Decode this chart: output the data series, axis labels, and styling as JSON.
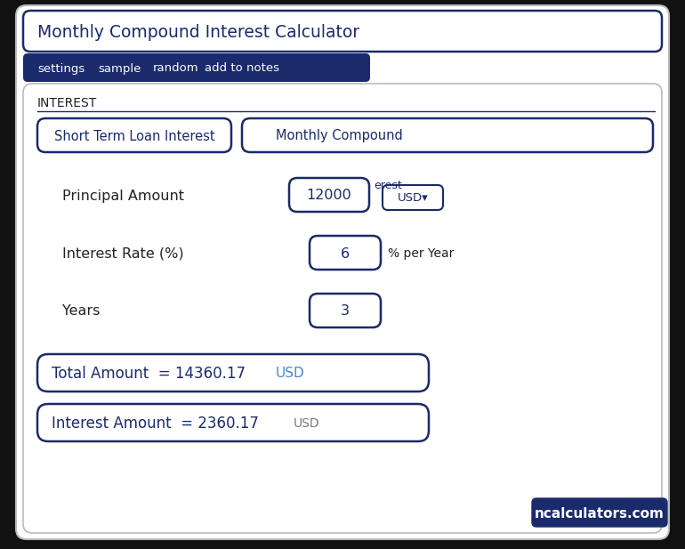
{
  "title": "Monthly Compound Interest Calculator",
  "tab_items": [
    "settings",
    "sample",
    "random",
    "add to notes"
  ],
  "tab_bg": "#1b2a6b",
  "tab_text_color": "#ffffff",
  "section_label": "INTEREST",
  "btn1_text": "Short Term Loan Interest",
  "btn2_text": "Monthly Compound",
  "field1_label": "Principal Amount",
  "field1_value": "12000",
  "field1_extra_text": "erest",
  "field1_extra_btn": "USD▾",
  "field2_label": "Interest Rate (%)",
  "field2_value": "6",
  "field2_suffix": "% per Year",
  "field3_label": "Years",
  "field3_value": "3",
  "result1_text": "Total Amount  = 14360.17",
  "result1_unit": "USD",
  "result2_text": "Interest Amount  = 2360.17",
  "result2_unit": "USD",
  "brand_text": "ncalculators.com",
  "brand_bg": "#1b2a6b",
  "brand_text_color": "#ffffff",
  "outer_bg": "#111111",
  "card_bg": "#ffffff",
  "card_border": "#bbbbbb",
  "border_color": "#1b2a6b",
  "text_dark": "#1b2a6b",
  "label_color": "#222222",
  "result_unit_blue": "#4488cc",
  "result_unit_gray": "#777777"
}
